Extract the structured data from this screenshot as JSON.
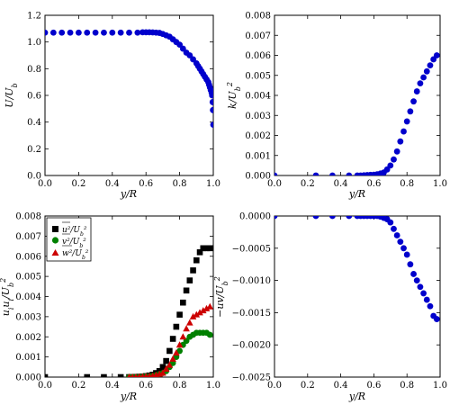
{
  "chart_data": [
    {
      "type": "scatter",
      "xlabel": "y/R",
      "ylabel": "U/U_b",
      "xlim": [
        0.0,
        1.0
      ],
      "ylim": [
        0.0,
        1.2
      ],
      "xticks": [
        "0.0",
        "0.2",
        "0.4",
        "0.6",
        "0.8",
        "1.0"
      ],
      "yticks": [
        "0.0",
        "0.2",
        "0.4",
        "0.6",
        "0.8",
        "1.0",
        "1.2"
      ],
      "legend": null,
      "series": [
        {
          "marker": "circle",
          "color": "#0000cc",
          "x": [
            0.0,
            0.05,
            0.1,
            0.15,
            0.2,
            0.25,
            0.3,
            0.35,
            0.4,
            0.45,
            0.5,
            0.55,
            0.58,
            0.6,
            0.62,
            0.64,
            0.66,
            0.68,
            0.7,
            0.72,
            0.74,
            0.76,
            0.78,
            0.8,
            0.82,
            0.84,
            0.86,
            0.88,
            0.9,
            0.91,
            0.92,
            0.93,
            0.94,
            0.95,
            0.96,
            0.97,
            0.975,
            0.98,
            0.985,
            0.99,
            0.993,
            0.996,
            0.998,
            1.0
          ],
          "y": [
            1.07,
            1.07,
            1.07,
            1.07,
            1.07,
            1.07,
            1.07,
            1.07,
            1.07,
            1.07,
            1.07,
            1.07,
            1.073,
            1.073,
            1.073,
            1.072,
            1.07,
            1.068,
            1.06,
            1.05,
            1.04,
            1.02,
            1.0,
            0.98,
            0.95,
            0.92,
            0.9,
            0.87,
            0.84,
            0.82,
            0.8,
            0.78,
            0.76,
            0.74,
            0.72,
            0.7,
            0.68,
            0.66,
            0.64,
            0.62,
            0.6,
            0.55,
            0.49,
            0.38
          ]
        }
      ]
    },
    {
      "type": "scatter",
      "xlabel": "y/R",
      "ylabel": "k/U_b^2",
      "xlim": [
        0.0,
        1.0
      ],
      "ylim": [
        0.0,
        0.008
      ],
      "xticks": [
        "0.0",
        "0.2",
        "0.4",
        "0.6",
        "0.8",
        "1.0"
      ],
      "yticks": [
        "0.000",
        "0.001",
        "0.002",
        "0.003",
        "0.004",
        "0.005",
        "0.006",
        "0.007",
        "0.008"
      ],
      "legend": null,
      "series": [
        {
          "marker": "circle",
          "color": "#0000cc",
          "x": [
            0.0,
            0.25,
            0.35,
            0.45,
            0.5,
            0.52,
            0.54,
            0.56,
            0.58,
            0.6,
            0.62,
            0.64,
            0.66,
            0.68,
            0.7,
            0.72,
            0.74,
            0.76,
            0.78,
            0.8,
            0.82,
            0.84,
            0.86,
            0.88,
            0.9,
            0.92,
            0.94,
            0.96,
            0.98
          ],
          "y": [
            0.0,
            0.0,
            0.0,
            0.0,
            0.0,
            0.0,
            1e-05,
            2e-05,
            3e-05,
            4e-05,
            6e-05,
            0.0001,
            0.00015,
            0.0003,
            0.0005,
            0.0008,
            0.0012,
            0.0017,
            0.0022,
            0.0027,
            0.0032,
            0.0037,
            0.0042,
            0.0046,
            0.0049,
            0.0052,
            0.0055,
            0.0058,
            0.006
          ]
        }
      ]
    },
    {
      "type": "scatter",
      "xlabel": "y/R",
      "ylabel": "\\overline{u_i u_i}/U_b^2",
      "xlim": [
        0.0,
        1.0
      ],
      "ylim": [
        0.0,
        0.008
      ],
      "xticks": [
        "0.0",
        "0.2",
        "0.4",
        "0.6",
        "0.8",
        "1.0"
      ],
      "yticks": [
        "0.000",
        "0.001",
        "0.002",
        "0.003",
        "0.004",
        "0.005",
        "0.006",
        "0.007",
        "0.008"
      ],
      "legend": "top-left",
      "series": [
        {
          "name": "\\overline{u^2}/U_b^2",
          "marker": "square",
          "color": "#000000",
          "x": [
            0.0,
            0.25,
            0.35,
            0.45,
            0.5,
            0.52,
            0.54,
            0.56,
            0.58,
            0.6,
            0.62,
            0.64,
            0.66,
            0.68,
            0.7,
            0.72,
            0.74,
            0.76,
            0.78,
            0.8,
            0.82,
            0.84,
            0.86,
            0.88,
            0.9,
            0.92,
            0.94,
            0.96,
            0.98
          ],
          "y": [
            0.0,
            0.0,
            0.0,
            0.0,
            0.0,
            0.0,
            1e-05,
            2e-05,
            3e-05,
            5e-05,
            8e-05,
            0.00012,
            0.0002,
            0.0003,
            0.0005,
            0.0008,
            0.0013,
            0.0019,
            0.0025,
            0.0031,
            0.0037,
            0.0043,
            0.0048,
            0.0053,
            0.0058,
            0.0062,
            0.0064,
            0.0064,
            0.0064
          ]
        },
        {
          "name": "\\overline{v^2}/U_b^2",
          "marker": "circle",
          "color": "#008000",
          "x": [
            0.5,
            0.52,
            0.54,
            0.56,
            0.58,
            0.6,
            0.62,
            0.64,
            0.66,
            0.68,
            0.7,
            0.72,
            0.74,
            0.76,
            0.78,
            0.8,
            0.82,
            0.84,
            0.86,
            0.88,
            0.9,
            0.92,
            0.94,
            0.96,
            0.98
          ],
          "y": [
            0.0,
            0.0,
            0.0,
            1e-05,
            2e-05,
            3e-05,
            4e-05,
            6e-05,
            0.0001,
            0.00015,
            0.0002,
            0.0003,
            0.0005,
            0.0007,
            0.001,
            0.0013,
            0.0016,
            0.0018,
            0.002,
            0.0021,
            0.0022,
            0.0022,
            0.0022,
            0.0022,
            0.0021
          ]
        },
        {
          "name": "\\overline{w^2}/U_b^2",
          "marker": "triangle",
          "color": "#cc0000",
          "x": [
            0.5,
            0.52,
            0.54,
            0.56,
            0.58,
            0.6,
            0.62,
            0.64,
            0.66,
            0.68,
            0.7,
            0.72,
            0.74,
            0.76,
            0.78,
            0.8,
            0.82,
            0.84,
            0.86,
            0.88,
            0.9,
            0.92,
            0.94,
            0.96,
            0.98
          ],
          "y": [
            0.0,
            0.0,
            0.0,
            1e-05,
            2e-05,
            3e-05,
            4e-05,
            6e-05,
            0.0001,
            0.00015,
            0.0002,
            0.0004,
            0.0006,
            0.0009,
            0.0012,
            0.0016,
            0.002,
            0.0024,
            0.0027,
            0.003,
            0.0031,
            0.0032,
            0.0033,
            0.0034,
            0.0035
          ]
        }
      ]
    },
    {
      "type": "scatter",
      "xlabel": "y/R",
      "ylabel": "-\\overline{uv}/U_b^2",
      "xlim": [
        0.0,
        1.0
      ],
      "ylim": [
        -0.0025,
        0.0
      ],
      "xticks": [
        "0.0",
        "0.2",
        "0.4",
        "0.6",
        "0.8",
        "1.0"
      ],
      "yticks": [
        "−0.0025",
        "−0.0020",
        "−0.0015",
        "−0.0010",
        "−0.0005",
        "0.0000"
      ],
      "legend": null,
      "series": [
        {
          "marker": "circle",
          "color": "#0000cc",
          "x": [
            0.0,
            0.25,
            0.35,
            0.45,
            0.5,
            0.52,
            0.54,
            0.56,
            0.58,
            0.6,
            0.62,
            0.64,
            0.66,
            0.68,
            0.7,
            0.72,
            0.74,
            0.76,
            0.78,
            0.8,
            0.82,
            0.84,
            0.86,
            0.88,
            0.9,
            0.92,
            0.94,
            0.96,
            0.98
          ],
          "y": [
            0.0,
            0.0,
            0.0,
            0.0,
            0.0,
            0.0,
            0.0,
            0.0,
            0.0,
            0.0,
            0.0,
            -1e-05,
            -3e-05,
            -5e-05,
            -0.0001,
            -0.0002,
            -0.0003,
            -0.0004,
            -0.0005,
            -0.0006,
            -0.00075,
            -0.0009,
            -0.001,
            -0.0011,
            -0.0012,
            -0.0013,
            -0.0014,
            -0.00155,
            -0.0016
          ]
        }
      ]
    }
  ]
}
